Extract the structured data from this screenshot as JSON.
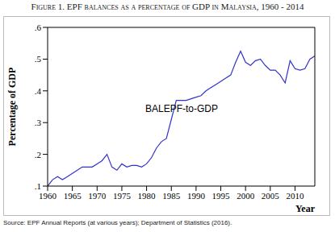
{
  "chart_data": {
    "type": "line",
    "title": "Figure 1. EPF balances as a percentage of GDP in Malaysia, 1960 - 2014",
    "y_label": "Percentage of GDP",
    "x_label": "Year",
    "annotation": "BALEPF-to-GDP",
    "source": "Source: EPF Annual Reports (at various years); Department of Statistics (2016).",
    "x": [
      1960,
      1961,
      1962,
      1963,
      1964,
      1965,
      1966,
      1967,
      1968,
      1969,
      1970,
      1971,
      1972,
      1973,
      1974,
      1975,
      1976,
      1977,
      1978,
      1979,
      1980,
      1981,
      1982,
      1983,
      1984,
      1985,
      1986,
      1987,
      1988,
      1989,
      1990,
      1991,
      1992,
      1993,
      1994,
      1995,
      1996,
      1997,
      1998,
      1999,
      2000,
      2001,
      2002,
      2003,
      2004,
      2005,
      2006,
      2007,
      2008,
      2009,
      2010,
      2011,
      2012,
      2013,
      2014
    ],
    "values": [
      0.1,
      0.12,
      0.13,
      0.12,
      0.13,
      0.14,
      0.15,
      0.16,
      0.16,
      0.16,
      0.17,
      0.18,
      0.2,
      0.16,
      0.15,
      0.17,
      0.16,
      0.165,
      0.165,
      0.16,
      0.17,
      0.19,
      0.22,
      0.24,
      0.25,
      0.31,
      0.37,
      0.37,
      0.37,
      0.375,
      0.38,
      0.385,
      0.4,
      0.41,
      0.42,
      0.43,
      0.44,
      0.45,
      0.49,
      0.525,
      0.49,
      0.48,
      0.495,
      0.5,
      0.48,
      0.465,
      0.465,
      0.45,
      0.425,
      0.495,
      0.47,
      0.465,
      0.47,
      0.5,
      0.51
    ],
    "color": "#3333cc",
    "xlim": [
      1960,
      2014
    ],
    "xticks": [
      1960,
      1965,
      1970,
      1975,
      1980,
      1985,
      1990,
      1995,
      2000,
      2005,
      2010
    ],
    "ylim": [
      0.1,
      0.6
    ],
    "yticks": [
      {
        "value": 0.1,
        "label": ".1"
      },
      {
        "value": 0.2,
        "label": ".2"
      },
      {
        "value": 0.3,
        "label": ".3"
      },
      {
        "value": 0.4,
        "label": ".4"
      },
      {
        "value": 0.5,
        "label": ".5"
      },
      {
        "value": 0.6,
        "label": ".6"
      }
    ],
    "grid": false
  }
}
